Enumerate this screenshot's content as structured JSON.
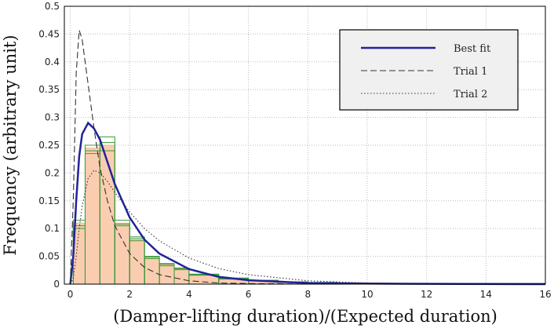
{
  "chart_data": {
    "type": "histogram",
    "xlabel": "(Damper-lifting duration)/(Expected duration)",
    "ylabel": "Frequency (arbitrary unit)",
    "xlim": [
      -0.2,
      16
    ],
    "ylim": [
      0,
      0.5
    ],
    "xticks": [
      0,
      2,
      4,
      6,
      8,
      10,
      12,
      14,
      16
    ],
    "yticks": [
      0,
      0.05,
      0.1,
      0.15,
      0.2,
      0.25,
      0.3,
      0.35,
      0.4,
      0.45,
      0.5
    ],
    "grid": true,
    "legend": "upper right",
    "bins": [
      0.1,
      0.5,
      1,
      1.5,
      2,
      2.5,
      3,
      3.5,
      4,
      5,
      6,
      7,
      8,
      9,
      16
    ],
    "histograms": [
      {
        "color": "#fbcdb0",
        "values": [
          0.11,
          0.245,
          0.25,
          0.11,
          0.08,
          0.048,
          0.035,
          0.027,
          0.017,
          0.01,
          0.007,
          0.004,
          0.003,
          0.001
        ]
      },
      {
        "color": "#3a9a3a",
        "values": [
          0.115,
          0.25,
          0.265,
          0.115,
          0.085,
          0.05,
          0.037,
          0.028,
          0.018,
          0.011,
          0.007,
          0.004,
          0.003,
          0.001
        ]
      },
      {
        "color": "#3a9a3a",
        "values": [
          0.1,
          0.24,
          0.255,
          0.105,
          0.078,
          0.046,
          0.033,
          0.026,
          0.016,
          0.01,
          0.006,
          0.004,
          0.002,
          0.001
        ]
      },
      {
        "color": "#3a9a3a",
        "values": [
          0.105,
          0.235,
          0.24,
          0.108,
          0.082,
          0.049,
          0.036,
          0.029,
          0.017,
          0.009,
          0.007,
          0.003,
          0.003,
          0.001
        ]
      }
    ],
    "x": [
      0,
      0.1,
      0.2,
      0.3,
      0.4,
      0.6,
      0.8,
      1,
      1.25,
      1.5,
      2,
      2.5,
      3,
      4,
      5,
      6,
      8,
      10,
      12,
      16
    ],
    "series": [
      {
        "name": "Best fit",
        "color": "#22229a",
        "dash": "solid",
        "values": [
          0,
          0.05,
          0.15,
          0.23,
          0.27,
          0.29,
          0.28,
          0.26,
          0.22,
          0.18,
          0.12,
          0.08,
          0.055,
          0.027,
          0.013,
          0.007,
          0.002,
          0.001,
          0.0005,
          0
        ]
      },
      {
        "name": "Trial 1",
        "color": "#333333",
        "dash": "dashed",
        "values": [
          0,
          0.15,
          0.38,
          0.457,
          0.44,
          0.36,
          0.28,
          0.21,
          0.15,
          0.105,
          0.055,
          0.03,
          0.017,
          0.006,
          0.002,
          0.001,
          0,
          0,
          0,
          0
        ]
      },
      {
        "name": "Trial 2",
        "color": "#333333",
        "dash": "dotted",
        "values": [
          0,
          0.01,
          0.05,
          0.1,
          0.14,
          0.19,
          0.205,
          0.2,
          0.185,
          0.165,
          0.13,
          0.1,
          0.078,
          0.047,
          0.028,
          0.017,
          0.006,
          0.002,
          0.001,
          0
        ]
      }
    ]
  }
}
